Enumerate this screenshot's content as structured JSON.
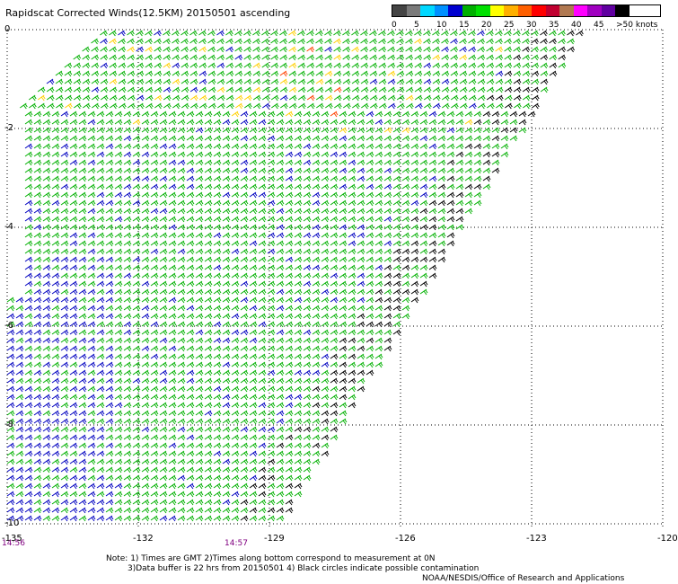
{
  "title": "Rapidscat Corrected Winds(12.5KM) 20150501 ascending",
  "legend": {
    "colors": [
      "#444444",
      "#7a7a7a",
      "#00d8ff",
      "#0090ff",
      "#0000d0",
      "#00b000",
      "#00e000",
      "#ffff00",
      "#ffb000",
      "#ff6000",
      "#ff0000",
      "#c00030",
      "#b07850",
      "#ff00ff",
      "#a000c0",
      "#6000a0",
      "#000000"
    ],
    "labels": [
      "0",
      "5",
      "10",
      "15",
      "20",
      "25",
      "30",
      "35",
      "40",
      "45"
    ],
    "unit": ">50 knots"
  },
  "axes": {
    "y_labels": [
      "0",
      "-2",
      "-4",
      "-6",
      "-8",
      "-10"
    ],
    "x_labels": [
      "-135",
      "-132",
      "-129",
      "-126",
      "-123",
      "-120"
    ]
  },
  "times": {
    "start": "14:56",
    "mid": "14:57"
  },
  "notes": {
    "line1": "Note: 1) Times are GMT 2)Times along bottom correspond to measurement at 0N",
    "line2": "3)Data buffer is 22 hrs from 20150501 4) Black circles indicate possible contamination",
    "line3": "NOAA/NESDIS/Office of Research and Applications"
  },
  "map_data": {
    "lat_range": [
      -10,
      0
    ],
    "lon_range": [
      -135,
      -120
    ],
    "barb_colors": {
      "light": "#0000c0",
      "moderate": "#00b000",
      "strong": "#ffd000",
      "gale": "#ff4000",
      "contaminated": "#000000"
    }
  }
}
